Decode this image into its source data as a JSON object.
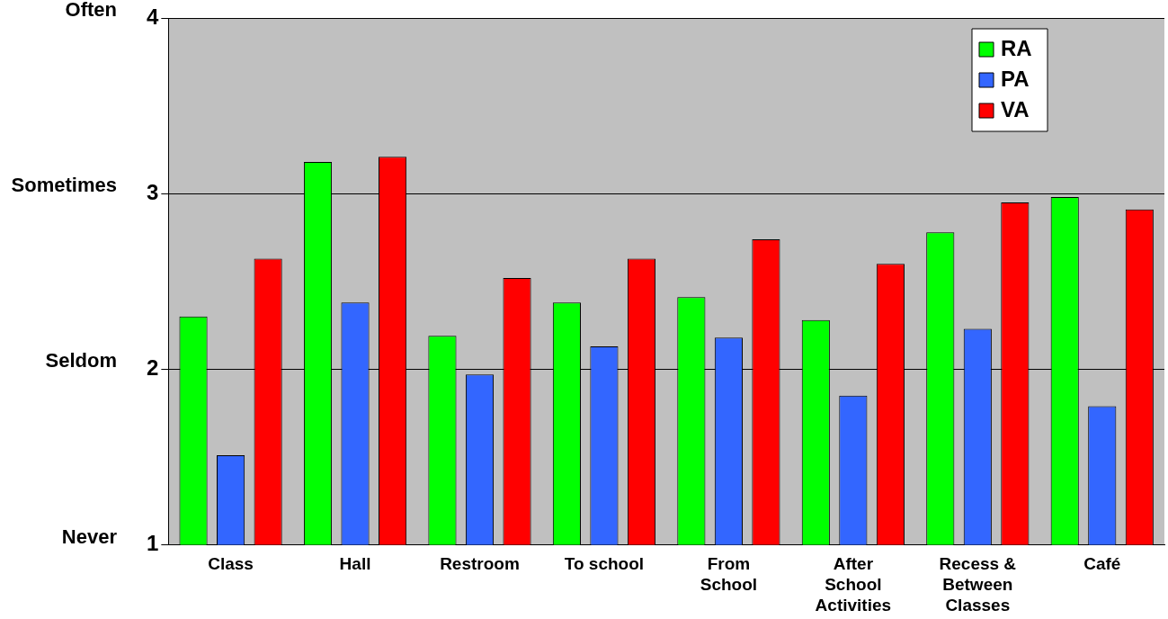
{
  "chart_data": {
    "type": "bar",
    "categories": [
      "Class",
      "Hall",
      "Restroom",
      "To school",
      "From School",
      "After School Activities",
      "Recess & Between Classes",
      "Café"
    ],
    "series": [
      {
        "name": "RA",
        "color": "#00ff00",
        "values": [
          2.3,
          3.18,
          2.19,
          2.38,
          2.41,
          2.28,
          2.78,
          2.98
        ]
      },
      {
        "name": "PA",
        "color": "#3366ff",
        "values": [
          1.51,
          2.38,
          1.97,
          2.13,
          2.18,
          1.85,
          2.23,
          1.79
        ]
      },
      {
        "name": "VA",
        "color": "#ff0000",
        "values": [
          2.63,
          3.21,
          2.52,
          2.63,
          2.74,
          2.6,
          2.95,
          2.91
        ]
      }
    ],
    "ylim": [
      1,
      4
    ],
    "yticks": [
      1,
      2,
      3,
      4
    ],
    "annotations": [
      "Never",
      "Seldom",
      "Sometimes",
      "Often"
    ],
    "grid": "y",
    "legend": "top right"
  }
}
